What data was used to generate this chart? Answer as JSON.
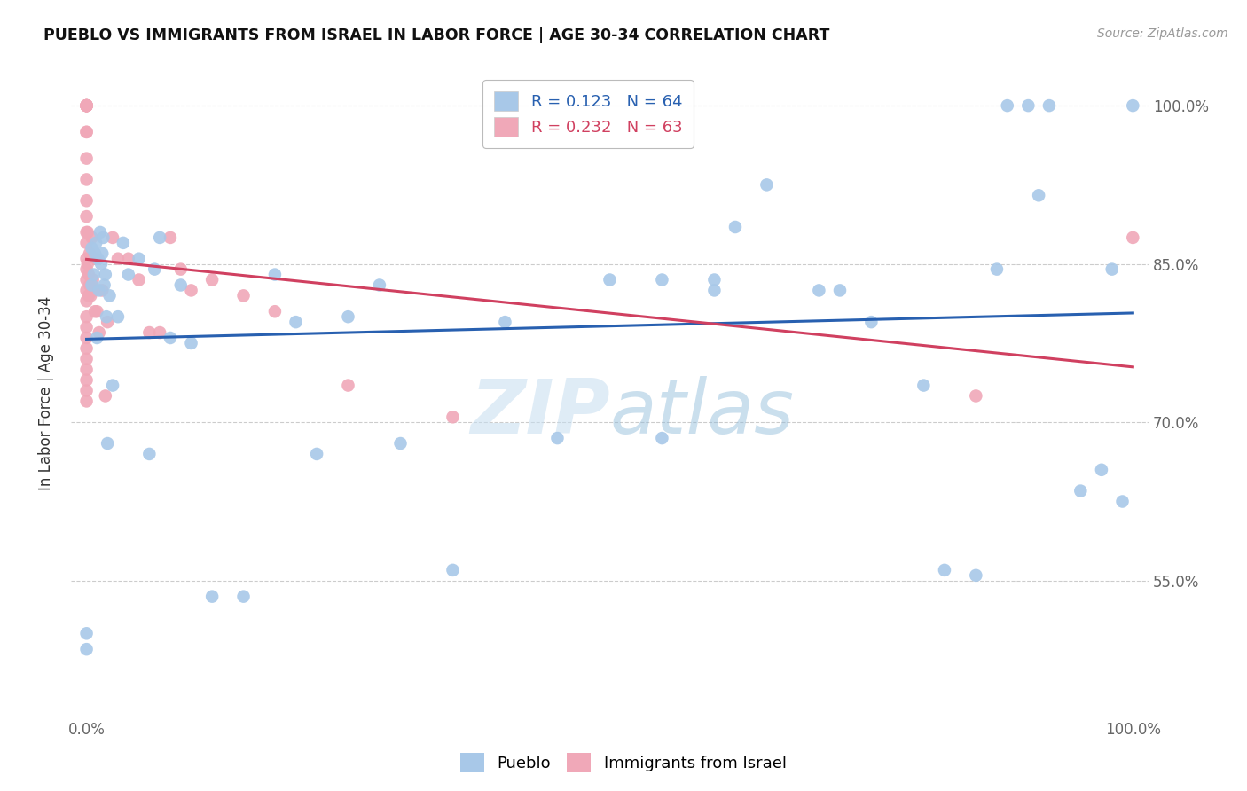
{
  "title": "PUEBLO VS IMMIGRANTS FROM ISRAEL IN LABOR FORCE | AGE 30-34 CORRELATION CHART",
  "source": "Source: ZipAtlas.com",
  "ylabel": "In Labor Force | Age 30-34",
  "y_min": 0.42,
  "y_max": 1.035,
  "pueblo_color": "#a8c8e8",
  "israel_color": "#f0a8b8",
  "pueblo_line_color": "#2860b0",
  "israel_line_color": "#d04060",
  "legend_pueblo_color": "#a8c8e8",
  "legend_israel_color": "#f0a8b8",
  "watermark": "ZIPatlas",
  "R_pueblo": 0.123,
  "N_pueblo": 64,
  "R_israel": 0.232,
  "N_israel": 63,
  "pueblo_x": [
    0.0,
    0.0,
    0.005,
    0.005,
    0.007,
    0.008,
    0.009,
    0.01,
    0.011,
    0.012,
    0.013,
    0.014,
    0.015,
    0.016,
    0.017,
    0.018,
    0.019,
    0.02,
    0.022,
    0.025,
    0.03,
    0.035,
    0.04,
    0.05,
    0.06,
    0.065,
    0.07,
    0.08,
    0.09,
    0.1,
    0.12,
    0.15,
    0.18,
    0.2,
    0.22,
    0.25,
    0.28,
    0.3,
    0.35,
    0.4,
    0.45,
    0.5,
    0.55,
    0.55,
    0.6,
    0.6,
    0.62,
    0.65,
    0.7,
    0.72,
    0.75,
    0.8,
    0.82,
    0.85,
    0.87,
    0.88,
    0.9,
    0.91,
    0.92,
    0.95,
    0.97,
    0.98,
    0.99,
    1.0
  ],
  "pueblo_y": [
    0.485,
    0.5,
    0.865,
    0.83,
    0.84,
    0.86,
    0.87,
    0.78,
    0.855,
    0.825,
    0.88,
    0.85,
    0.86,
    0.875,
    0.83,
    0.84,
    0.8,
    0.68,
    0.82,
    0.735,
    0.8,
    0.87,
    0.84,
    0.855,
    0.67,
    0.845,
    0.875,
    0.78,
    0.83,
    0.775,
    0.535,
    0.535,
    0.84,
    0.795,
    0.67,
    0.8,
    0.83,
    0.68,
    0.56,
    0.795,
    0.685,
    0.835,
    0.685,
    0.835,
    0.835,
    0.825,
    0.885,
    0.925,
    0.825,
    0.825,
    0.795,
    0.735,
    0.56,
    0.555,
    0.845,
    1.0,
    1.0,
    0.915,
    1.0,
    0.635,
    0.655,
    0.845,
    0.625,
    1.0
  ],
  "israel_x": [
    0.0,
    0.0,
    0.0,
    0.0,
    0.0,
    0.0,
    0.0,
    0.0,
    0.0,
    0.0,
    0.0,
    0.0,
    0.0,
    0.0,
    0.0,
    0.0,
    0.0,
    0.0,
    0.0,
    0.0,
    0.0,
    0.0,
    0.0,
    0.0,
    0.0,
    0.0,
    0.0,
    0.0,
    0.0,
    0.0,
    0.001,
    0.001,
    0.002,
    0.002,
    0.003,
    0.003,
    0.004,
    0.005,
    0.006,
    0.007,
    0.008,
    0.009,
    0.01,
    0.012,
    0.015,
    0.018,
    0.02,
    0.025,
    0.03,
    0.04,
    0.05,
    0.06,
    0.07,
    0.08,
    0.09,
    0.1,
    0.12,
    0.15,
    0.18,
    0.25,
    0.35,
    0.85,
    1.0
  ],
  "israel_y": [
    1.0,
    1.0,
    1.0,
    1.0,
    1.0,
    1.0,
    1.0,
    1.0,
    0.975,
    0.975,
    0.95,
    0.93,
    0.91,
    0.895,
    0.88,
    0.87,
    0.855,
    0.845,
    0.835,
    0.825,
    0.815,
    0.8,
    0.79,
    0.78,
    0.77,
    0.76,
    0.75,
    0.74,
    0.73,
    0.72,
    0.88,
    0.85,
    0.84,
    0.82,
    0.86,
    0.83,
    0.82,
    0.875,
    0.835,
    0.825,
    0.805,
    0.855,
    0.805,
    0.785,
    0.825,
    0.725,
    0.795,
    0.875,
    0.855,
    0.855,
    0.835,
    0.785,
    0.785,
    0.875,
    0.845,
    0.825,
    0.835,
    0.82,
    0.805,
    0.735,
    0.705,
    0.725,
    0.875
  ]
}
